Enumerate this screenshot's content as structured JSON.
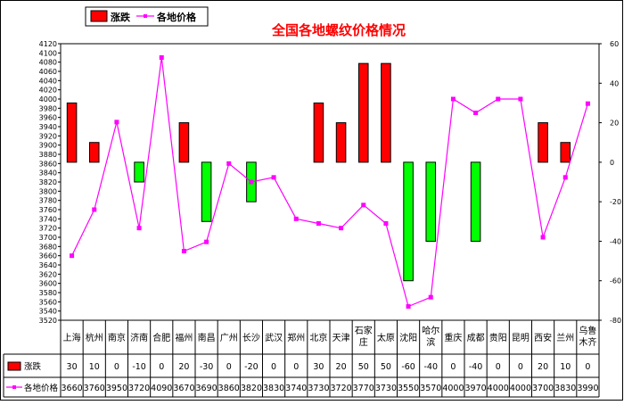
{
  "chart_data": {
    "type": "bar+line",
    "title": "全国各地螺纹价格情况",
    "legend": {
      "bar_label": "涨跌",
      "line_label": "各地价格",
      "placement": "top-left"
    },
    "categories": [
      [
        "上海"
      ],
      [
        "杭州"
      ],
      [
        "南京"
      ],
      [
        "济南"
      ],
      [
        "合肥"
      ],
      [
        "福州"
      ],
      [
        "南昌"
      ],
      [
        "广州"
      ],
      [
        "长沙"
      ],
      [
        "武汉"
      ],
      [
        "郑州"
      ],
      [
        "北京"
      ],
      [
        "天津"
      ],
      [
        "石家",
        "庄"
      ],
      [
        "太原"
      ],
      [
        "沈阳"
      ],
      [
        "哈尔",
        "滨"
      ],
      [
        "重庆"
      ],
      [
        "成都"
      ],
      [
        "贵阳"
      ],
      [
        "昆明"
      ],
      [
        "西安"
      ],
      [
        "兰州"
      ],
      [
        "乌鲁",
        "木齐"
      ]
    ],
    "series": [
      {
        "name": "涨跌",
        "type": "bar",
        "axis": "right",
        "values": [
          30,
          10,
          0,
          -10,
          0,
          20,
          -30,
          0,
          -20,
          0,
          0,
          30,
          20,
          50,
          50,
          -60,
          -40,
          0,
          -40,
          0,
          0,
          20,
          10,
          0
        ]
      },
      {
        "name": "各地价格",
        "type": "line",
        "axis": "left",
        "values": [
          3660,
          3760,
          3950,
          3720,
          4090,
          3670,
          3690,
          3860,
          3820,
          3830,
          3740,
          3730,
          3720,
          3770,
          3730,
          3550,
          3570,
          4000,
          3970,
          4000,
          4000,
          3700,
          3830,
          3990
        ]
      }
    ],
    "left_axis": {
      "min": 3520,
      "max": 4120,
      "step": 20
    },
    "right_axis": {
      "min": -80,
      "max": 60,
      "step": 20
    },
    "table": {
      "row_labels": [
        "涨跌",
        "各地价格"
      ]
    },
    "colors": {
      "up": "#ff0000",
      "down": "#00ff00",
      "line": "#ff00ff",
      "title": "#ff0000"
    }
  }
}
